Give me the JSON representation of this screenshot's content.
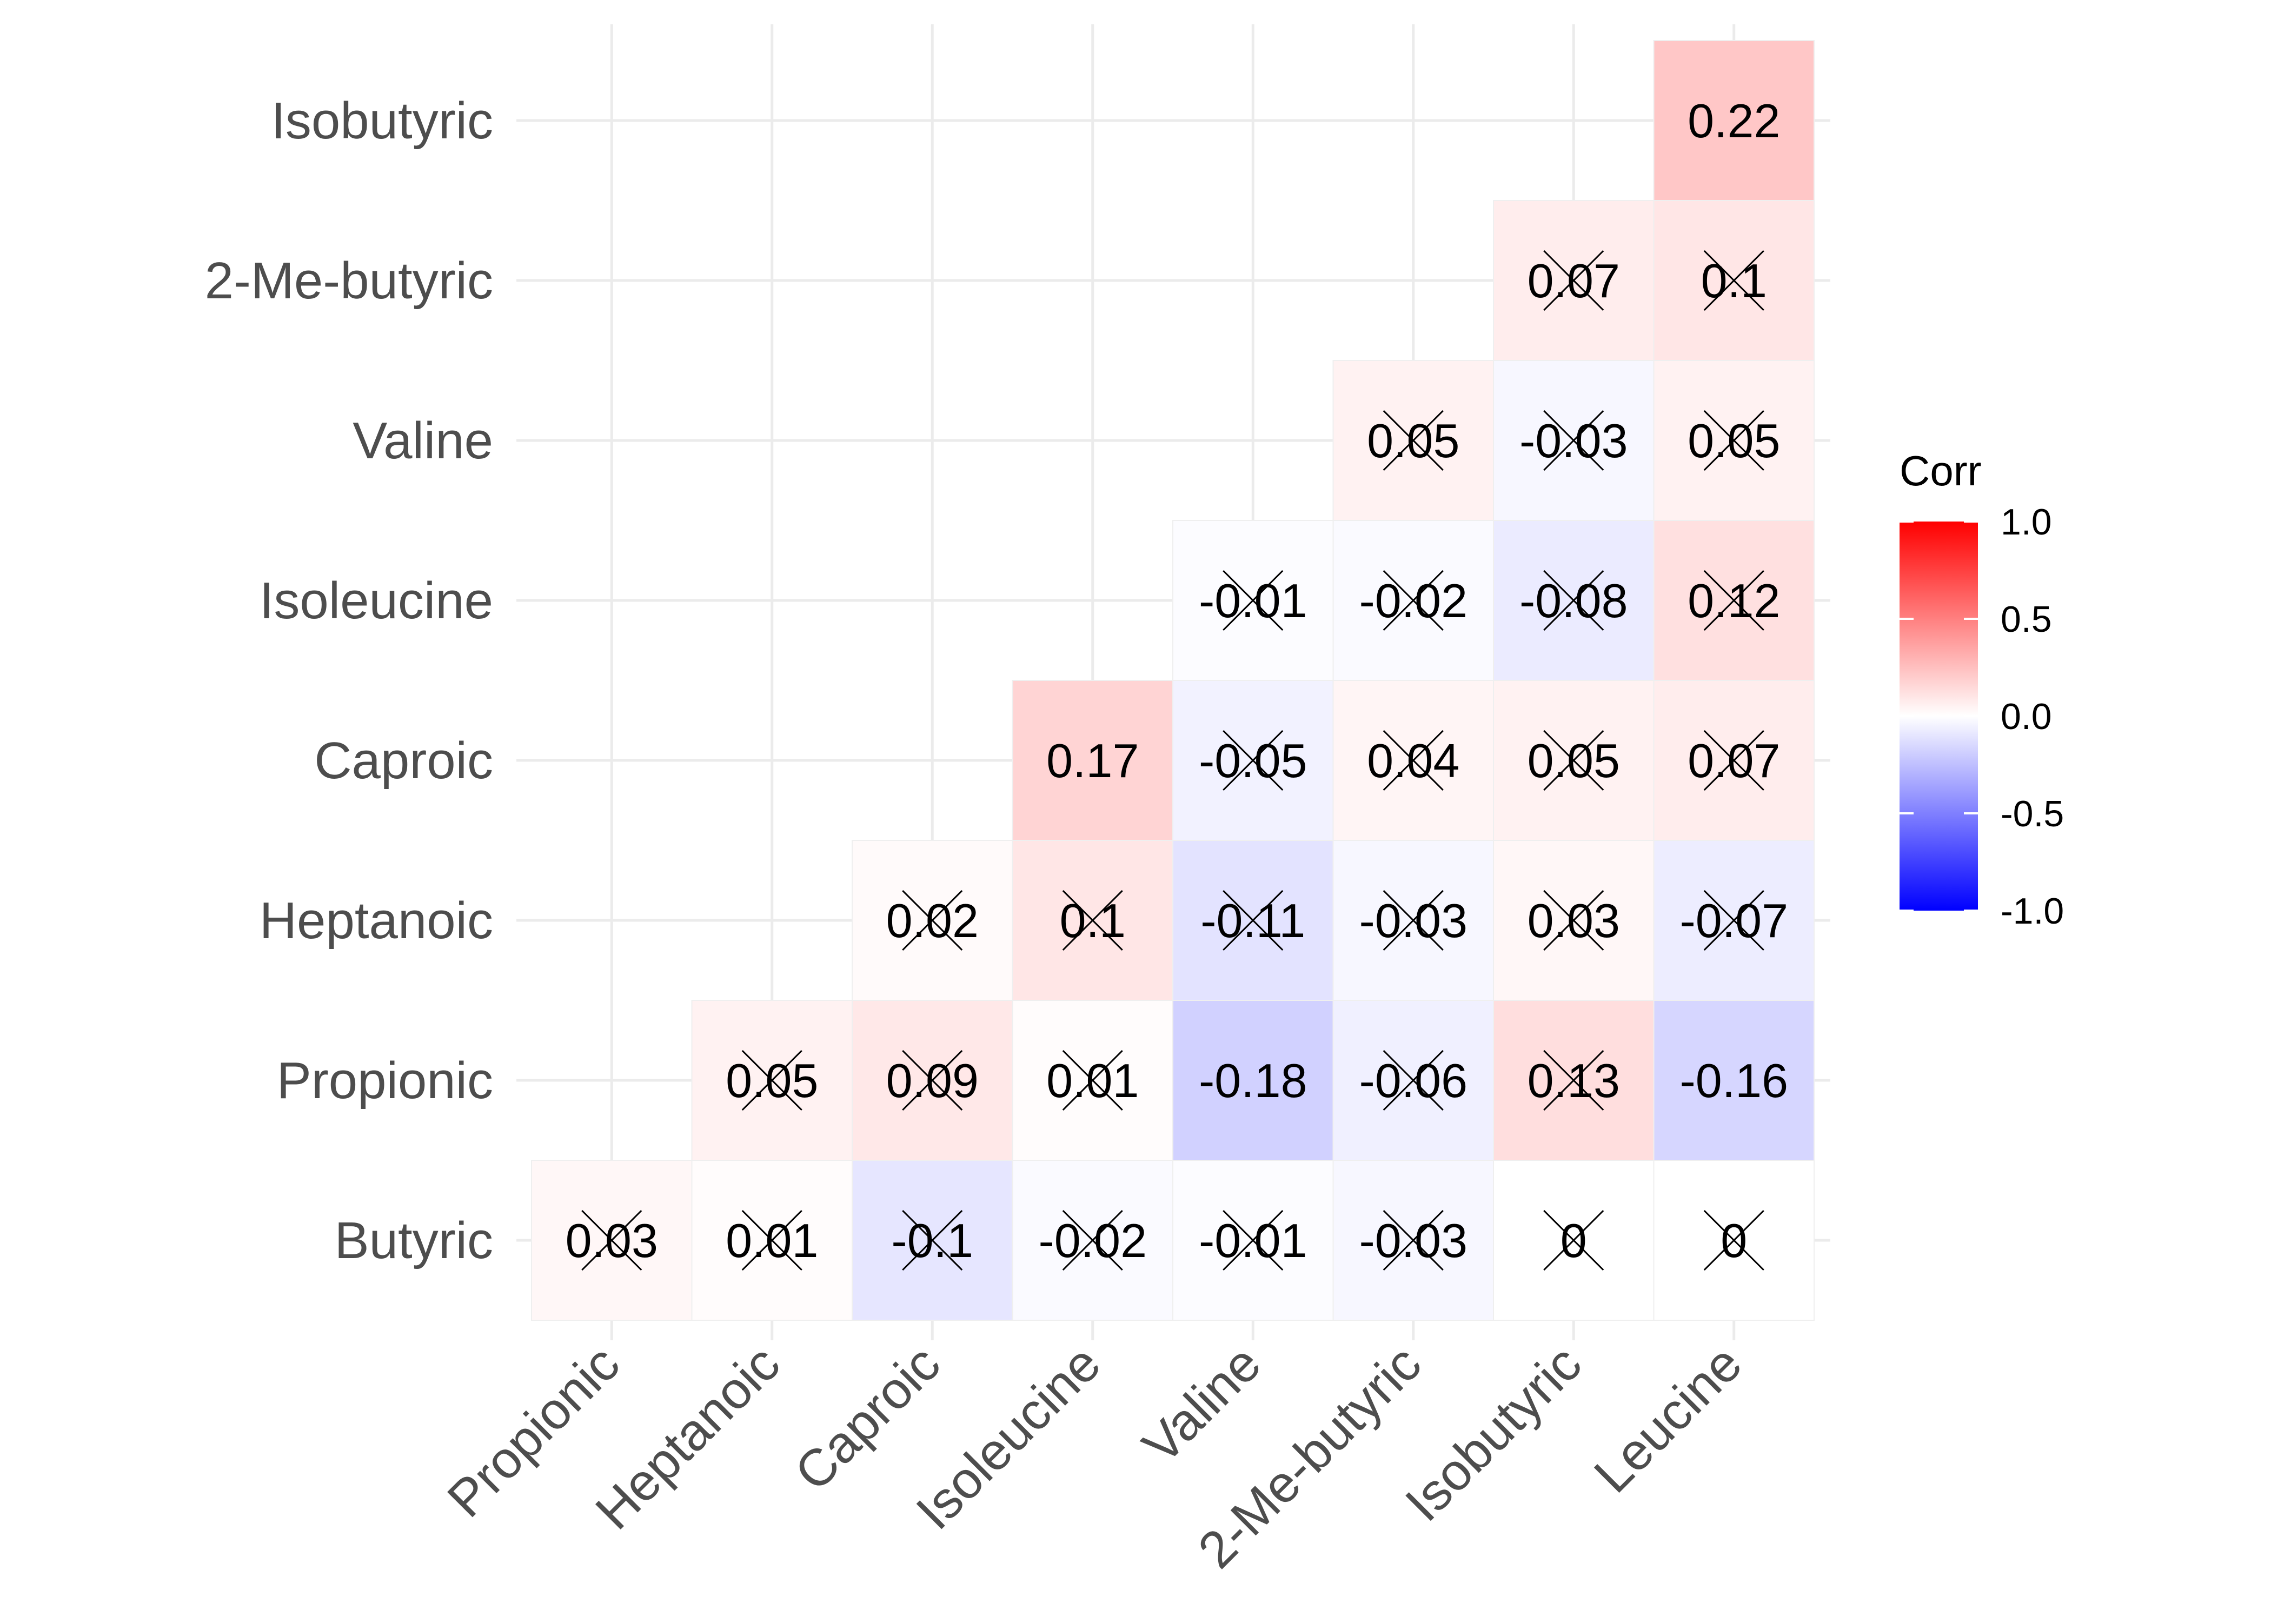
{
  "chart_data": {
    "type": "heatmap",
    "x_categories": [
      "Propionic",
      "Heptanoic",
      "Caproic",
      "Isoleucine",
      "Valine",
      "2-Me-butyric",
      "Isobutyric",
      "Leucine"
    ],
    "y_categories": [
      "Butyric",
      "Propionic",
      "Heptanoic",
      "Caproic",
      "Isoleucine",
      "Valine",
      "2-Me-butyric",
      "Isobutyric"
    ],
    "cells": [
      {
        "x": "Propionic",
        "y": "Butyric",
        "label": "0.03",
        "value": 0.03,
        "crossed": true
      },
      {
        "x": "Heptanoic",
        "y": "Butyric",
        "label": "0.01",
        "value": 0.01,
        "crossed": true
      },
      {
        "x": "Caproic",
        "y": "Butyric",
        "label": "-0.1",
        "value": -0.1,
        "crossed": true
      },
      {
        "x": "Isoleucine",
        "y": "Butyric",
        "label": "-0.02",
        "value": -0.02,
        "crossed": true
      },
      {
        "x": "Valine",
        "y": "Butyric",
        "label": "-0.01",
        "value": -0.01,
        "crossed": true
      },
      {
        "x": "2-Me-butyric",
        "y": "Butyric",
        "label": "-0.03",
        "value": -0.03,
        "crossed": true
      },
      {
        "x": "Isobutyric",
        "y": "Butyric",
        "label": "0",
        "value": 0,
        "crossed": true
      },
      {
        "x": "Leucine",
        "y": "Butyric",
        "label": "0",
        "value": 0,
        "crossed": true
      },
      {
        "x": "Heptanoic",
        "y": "Propionic",
        "label": "0.05",
        "value": 0.05,
        "crossed": true
      },
      {
        "x": "Caproic",
        "y": "Propionic",
        "label": "0.09",
        "value": 0.09,
        "crossed": true
      },
      {
        "x": "Isoleucine",
        "y": "Propionic",
        "label": "0.01",
        "value": 0.01,
        "crossed": true
      },
      {
        "x": "Valine",
        "y": "Propionic",
        "label": "-0.18",
        "value": -0.18,
        "crossed": false
      },
      {
        "x": "2-Me-butyric",
        "y": "Propionic",
        "label": "-0.06",
        "value": -0.06,
        "crossed": true
      },
      {
        "x": "Isobutyric",
        "y": "Propionic",
        "label": "0.13",
        "value": 0.13,
        "crossed": true
      },
      {
        "x": "Leucine",
        "y": "Propionic",
        "label": "-0.16",
        "value": -0.16,
        "crossed": false
      },
      {
        "x": "Caproic",
        "y": "Heptanoic",
        "label": "0.02",
        "value": 0.02,
        "crossed": true
      },
      {
        "x": "Isoleucine",
        "y": "Heptanoic",
        "label": "0.1",
        "value": 0.1,
        "crossed": true
      },
      {
        "x": "Valine",
        "y": "Heptanoic",
        "label": "-0.11",
        "value": -0.11,
        "crossed": true
      },
      {
        "x": "2-Me-butyric",
        "y": "Heptanoic",
        "label": "-0.03",
        "value": -0.03,
        "crossed": true
      },
      {
        "x": "Isobutyric",
        "y": "Heptanoic",
        "label": "0.03",
        "value": 0.03,
        "crossed": true
      },
      {
        "x": "Leucine",
        "y": "Heptanoic",
        "label": "-0.07",
        "value": -0.07,
        "crossed": true
      },
      {
        "x": "Isoleucine",
        "y": "Caproic",
        "label": "0.17",
        "value": 0.17,
        "crossed": false
      },
      {
        "x": "Valine",
        "y": "Caproic",
        "label": "-0.05",
        "value": -0.05,
        "crossed": true
      },
      {
        "x": "2-Me-butyric",
        "y": "Caproic",
        "label": "0.04",
        "value": 0.04,
        "crossed": true
      },
      {
        "x": "Isobutyric",
        "y": "Caproic",
        "label": "0.05",
        "value": 0.05,
        "crossed": true
      },
      {
        "x": "Leucine",
        "y": "Caproic",
        "label": "0.07",
        "value": 0.07,
        "crossed": true
      },
      {
        "x": "Valine",
        "y": "Isoleucine",
        "label": "-0.01",
        "value": -0.01,
        "crossed": true
      },
      {
        "x": "2-Me-butyric",
        "y": "Isoleucine",
        "label": "-0.02",
        "value": -0.02,
        "crossed": true
      },
      {
        "x": "Isobutyric",
        "y": "Isoleucine",
        "label": "-0.08",
        "value": -0.08,
        "crossed": true
      },
      {
        "x": "Leucine",
        "y": "Isoleucine",
        "label": "0.12",
        "value": 0.12,
        "crossed": true
      },
      {
        "x": "2-Me-butyric",
        "y": "Valine",
        "label": "0.05",
        "value": 0.05,
        "crossed": true
      },
      {
        "x": "Isobutyric",
        "y": "Valine",
        "label": "-0.03",
        "value": -0.03,
        "crossed": true
      },
      {
        "x": "Leucine",
        "y": "Valine",
        "label": "0.05",
        "value": 0.05,
        "crossed": true
      },
      {
        "x": "Isobutyric",
        "y": "2-Me-butyric",
        "label": "0.07",
        "value": 0.07,
        "crossed": true
      },
      {
        "x": "Leucine",
        "y": "2-Me-butyric",
        "label": "0.1",
        "value": 0.1,
        "crossed": true
      },
      {
        "x": "Leucine",
        "y": "Isobutyric",
        "label": "0.22",
        "value": 0.22,
        "crossed": false
      }
    ],
    "legend": {
      "title": "Corr",
      "ticks": [
        {
          "value": 1.0,
          "label": "1.0"
        },
        {
          "value": 0.5,
          "label": "0.5"
        },
        {
          "value": 0.0,
          "label": "0.0"
        },
        {
          "value": -0.5,
          "label": "-0.5"
        },
        {
          "value": -1.0,
          "label": "-1.0"
        }
      ],
      "range": [
        -1,
        1
      ],
      "placement": "right"
    },
    "colors": {
      "low": "#0000FF",
      "mid": "#FFFFFF",
      "high": "#FF0000"
    },
    "grid": true
  }
}
